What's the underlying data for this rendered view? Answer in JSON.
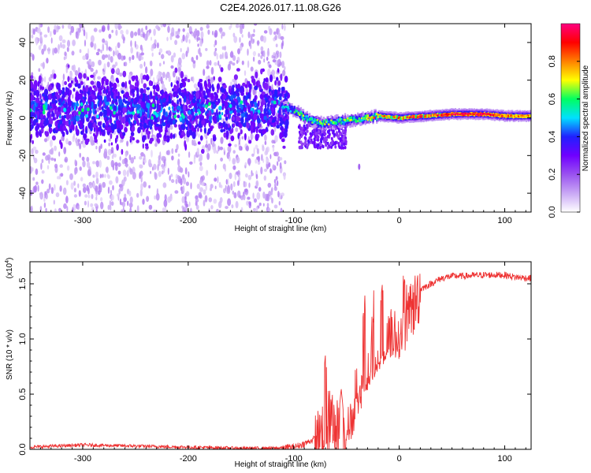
{
  "title": "C2E4.2026.017.11.08.G26",
  "chart_data": [
    {
      "type": "heatmap",
      "title": "C2E4.2026.017.11.08.G26",
      "xlabel": "Height of straight line (km)",
      "ylabel": "Frequency (Hz)",
      "xlim": [
        -350,
        125
      ],
      "ylim": [
        -50,
        50
      ],
      "xticks": [
        -300,
        -200,
        -100,
        0,
        100
      ],
      "xtick_labels": [
        "-300",
        "-200",
        "-100",
        "0",
        "100"
      ],
      "yticks": [
        -40,
        -20,
        0,
        20,
        40
      ],
      "ytick_labels": [
        "-40",
        "-20",
        "0",
        "20",
        "40"
      ],
      "colorbar": {
        "label": "Normalized spectral amplitude",
        "range": [
          0,
          1
        ],
        "ticks": [
          0.0,
          0.2,
          0.4,
          0.6,
          0.8
        ],
        "tick_labels": [
          "0.0",
          "0.2",
          "0.4",
          "0.6",
          "0.8"
        ],
        "colors": [
          "#ffffff",
          "#c9a8f5",
          "#9a52f0",
          "#7000ff",
          "#2020ff",
          "#00e0ff",
          "#00ff60",
          "#ffff00",
          "#ff8000",
          "#ff0000",
          "#ff0080"
        ]
      },
      "ridge": [
        {
          "x": -350,
          "freq": 5,
          "amp": 0.45
        },
        {
          "x": -300,
          "freq": 4,
          "amp": 0.45
        },
        {
          "x": -250,
          "freq": 4,
          "amp": 0.45
        },
        {
          "x": -200,
          "freq": 3,
          "amp": 0.45
        },
        {
          "x": -150,
          "freq": 5,
          "amp": 0.45
        },
        {
          "x": -115,
          "freq": 6,
          "amp": 0.5
        },
        {
          "x": -100,
          "freq": 4,
          "amp": 0.6
        },
        {
          "x": -90,
          "freq": 0,
          "amp": 0.65
        },
        {
          "x": -75,
          "freq": -3,
          "amp": 0.65
        },
        {
          "x": -60,
          "freq": -2,
          "amp": 0.65
        },
        {
          "x": -40,
          "freq": -1,
          "amp": 0.7
        },
        {
          "x": -20,
          "freq": 1,
          "amp": 0.8
        },
        {
          "x": 0,
          "freq": 0,
          "amp": 0.9
        },
        {
          "x": 50,
          "freq": 2,
          "amp": 0.95
        },
        {
          "x": 80,
          "freq": 2,
          "amp": 0.95
        },
        {
          "x": 100,
          "freq": 1,
          "amp": 0.85
        },
        {
          "x": 125,
          "freq": 1,
          "amp": 0.8
        }
      ]
    },
    {
      "type": "line",
      "xlabel": "Height of straight line (km)",
      "ylabel": "SNR (10 * v/v)",
      "y_multiplier_label": "(x10",
      "y_multiplier_exp": "4",
      "y_multiplier_close": ")",
      "xlim": [
        -350,
        125
      ],
      "ylim": [
        0,
        1.7
      ],
      "xticks": [
        -300,
        -200,
        -100,
        0,
        100
      ],
      "xtick_labels": [
        "-300",
        "-200",
        "-100",
        "0",
        "100"
      ],
      "yticks": [
        0.0,
        0.5,
        1.0,
        1.5
      ],
      "ytick_labels": [
        "0.0",
        "0.5",
        "1.0",
        "1.5"
      ],
      "color": "#ee3333",
      "series": [
        {
          "name": "SNR",
          "x": [
            -350,
            -300,
            -250,
            -200,
            -150,
            -120,
            -100,
            -90,
            -75,
            -70,
            -60,
            -50,
            -40,
            -30,
            -20,
            -10,
            0,
            10,
            20,
            30,
            40,
            50,
            60,
            80,
            100,
            110,
            125
          ],
          "y": [
            0.02,
            0.04,
            0.03,
            0.02,
            0.01,
            0.01,
            0.02,
            0.05,
            0.12,
            0.28,
            0.2,
            0.15,
            0.4,
            0.6,
            0.75,
            0.9,
            1.0,
            1.2,
            1.45,
            1.5,
            1.55,
            1.57,
            1.57,
            1.58,
            1.58,
            1.56,
            1.55
          ]
        }
      ],
      "spikes": [
        {
          "x": -70,
          "y": 0.85
        },
        {
          "x": -55,
          "y": 0.55
        },
        {
          "x": -33,
          "y": 1.33
        },
        {
          "x": -25,
          "y": 1.2
        },
        {
          "x": -16,
          "y": 1.5
        },
        {
          "x": -8,
          "y": 1.3
        },
        {
          "x": 5,
          "y": 1.55
        }
      ]
    }
  ]
}
